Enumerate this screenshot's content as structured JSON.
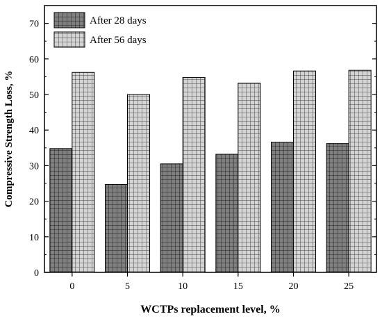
{
  "chart_data": {
    "type": "bar",
    "title": "",
    "xlabel": "WCTPs replacement level, %",
    "ylabel": "Compressive Strength Loss, %",
    "categories": [
      "0",
      "5",
      "10",
      "15",
      "20",
      "25"
    ],
    "series": [
      {
        "name": "After 28 days",
        "values": [
          34.8,
          24.7,
          30.5,
          33.2,
          36.6,
          36.2
        ],
        "color": "#808080"
      },
      {
        "name": "After 56 days",
        "values": [
          56.2,
          50.0,
          54.8,
          53.2,
          56.6,
          56.8
        ],
        "color": "#c8c8c8"
      }
    ],
    "ylim": [
      0,
      75
    ],
    "yticks": [
      0,
      10,
      20,
      30,
      40,
      50,
      60,
      70
    ],
    "grid": false,
    "legend": "top-left"
  }
}
